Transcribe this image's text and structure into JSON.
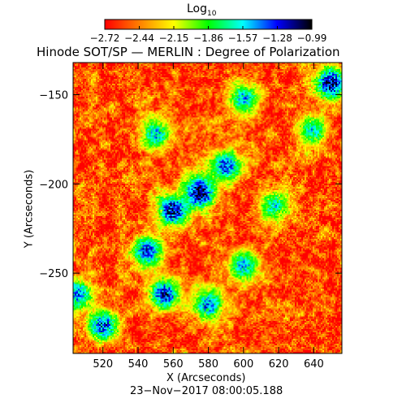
{
  "chart_data": {
    "type": "heatmap",
    "title": "Hinode SOT/SP — MERLIN : Degree of Polarization",
    "colorbar": {
      "label_base": "Log",
      "label_sub": "10",
      "ticks": [
        "−2.72",
        "−2.44",
        "−2.15",
        "−1.86",
        "−1.57",
        "−1.28",
        "−0.99"
      ],
      "range": [
        -2.72,
        -0.99
      ],
      "colors": [
        "#ff0000",
        "#ff8000",
        "#ffff00",
        "#00ff00",
        "#00ffff",
        "#0000ff",
        "#000000"
      ]
    },
    "xlabel": "X (Arcseconds)",
    "ylabel": "Y (Arcseconds)",
    "xlim": [
      503,
      656
    ],
    "ylim": [
      -295,
      -132
    ],
    "xticks": [
      520,
      540,
      560,
      580,
      600,
      620,
      640
    ],
    "xtick_labels": [
      "520",
      "540",
      "560",
      "580",
      "600",
      "620",
      "640"
    ],
    "yticks": [
      -150,
      -200,
      -250
    ],
    "ytick_labels": [
      "−150",
      "−200",
      "−250"
    ],
    "features": [
      {
        "x": 575,
        "y": -205,
        "value": -1.0
      },
      {
        "x": 560,
        "y": -215,
        "value": -1.1
      },
      {
        "x": 545,
        "y": -238,
        "value": -1.3
      },
      {
        "x": 555,
        "y": -262,
        "value": -1.2
      },
      {
        "x": 580,
        "y": -268,
        "value": -1.4
      },
      {
        "x": 520,
        "y": -280,
        "value": -1.3
      },
      {
        "x": 650,
        "y": -143,
        "value": -1.1
      },
      {
        "x": 600,
        "y": -152,
        "value": -1.5
      },
      {
        "x": 550,
        "y": -172,
        "value": -1.5
      },
      {
        "x": 590,
        "y": -190,
        "value": -1.3
      },
      {
        "x": 505,
        "y": -262,
        "value": -1.4
      },
      {
        "x": 618,
        "y": -212,
        "value": -1.6
      },
      {
        "x": 640,
        "y": -170,
        "value": -1.6
      },
      {
        "x": 600,
        "y": -246,
        "value": -1.5
      }
    ]
  },
  "timestamp": "23−Nov−2017 08:00:05.188"
}
